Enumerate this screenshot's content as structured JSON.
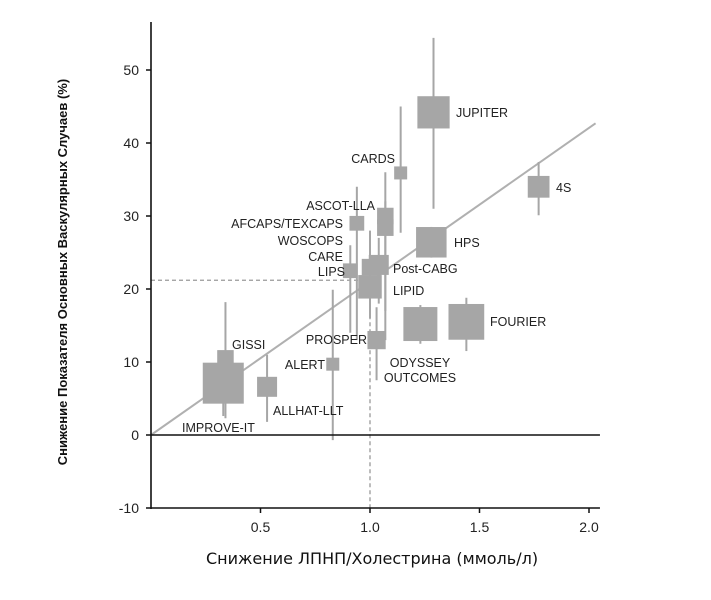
{
  "chart_data": {
    "type": "scatter",
    "xlabel": "Снижение ЛПНП/Холестрина (ммоль/л)",
    "ylabel": "Снижение Показателя Основных Васкулярных Случаев (%)",
    "xlim": [
      0,
      2.05
    ],
    "ylim": [
      -10,
      56
    ],
    "x_ticks": [
      "0.5",
      "1.0",
      "1.5",
      "2.0"
    ],
    "y_ticks": [
      "-10",
      "0",
      "10",
      "20",
      "30",
      "40",
      "50"
    ],
    "grid": false,
    "colors": {
      "marker": "#a6a6a6",
      "axis": "#111111",
      "regression": "#b0b0b0"
    },
    "regression_line": {
      "from": [
        0,
        0
      ],
      "to": [
        2.03,
        42.7
      ]
    },
    "reference_lines": {
      "x": 1.0,
      "y": 21.2,
      "style": "dashed"
    },
    "points": [
      {
        "label": "IMPROVE-IT",
        "x": 0.33,
        "y": 7.1,
        "ci": [
          2.6,
          9.5
        ],
        "weight": 10
      },
      {
        "label": "GISSI",
        "x": 0.34,
        "y": 10.5,
        "ci": [
          2.3,
          18.2
        ],
        "weight": 3
      },
      {
        "label": "ALLHAT-LLT",
        "x": 0.53,
        "y": 6.6,
        "ci": [
          1.8,
          11.0
        ],
        "weight": 4
      },
      {
        "label": "ALERT",
        "x": 0.83,
        "y": 9.7,
        "ci": [
          -0.7,
          19.9
        ],
        "weight": 2
      },
      {
        "label": "PROSPER",
        "x": 1.03,
        "y": 13.0,
        "ci": [
          7.5,
          17.5
        ],
        "weight": 3.5
      },
      {
        "label": "LIPS",
        "x": 0.91,
        "y": 22.5,
        "ci": [
          14.0,
          26.0
        ],
        "weight": 2.5
      },
      {
        "label": "CARE",
        "x": 1.0,
        "y": 23.0,
        "ci": [
          16.0,
          28.0
        ],
        "weight": 3
      },
      {
        "label": "WOSCOPS",
        "x": 1.07,
        "y": 28.4,
        "ci": [
          17.0,
          32.0
        ],
        "weight": 3
      },
      {
        "label": "AFCAPS/TEXCAPS",
        "x": 0.94,
        "y": 29.0,
        "ci": [
          13.0,
          34.0
        ],
        "weight": 2.5
      },
      {
        "label": "ASCOT-LLA",
        "x": 1.07,
        "y": 30.0,
        "ci": [
          13.0,
          36.0
        ],
        "weight": 3
      },
      {
        "label": "CARDS",
        "x": 1.14,
        "y": 35.9,
        "ci": [
          27.7,
          45.0
        ],
        "weight": 2
      },
      {
        "label": "JUPITER",
        "x": 1.29,
        "y": 44.2,
        "ci": [
          31.0,
          54.4
        ],
        "weight": 7.5
      },
      {
        "label": "HPS",
        "x": 1.28,
        "y": 26.4,
        "ci": [
          24.3,
          28.5
        ],
        "weight": 7
      },
      {
        "label": "4S",
        "x": 1.77,
        "y": 34.0,
        "ci": [
          30.1,
          37.4
        ],
        "weight": 4.5
      },
      {
        "label": "Post-CABG",
        "x": 1.04,
        "y": 23.3,
        "ci": [
          18.0,
          27.0
        ],
        "weight": 4
      },
      {
        "label": "LIPID",
        "x": 1.0,
        "y": 20.3,
        "ci": [
          17.5,
          22.5
        ],
        "weight": 5
      },
      {
        "label": "ODYSSEY OUTCOMES",
        "label_lines": [
          "ODYSSEY",
          "OUTCOMES"
        ],
        "x": 1.23,
        "y": 15.2,
        "ci": [
          12.5,
          17.8
        ],
        "weight": 8
      },
      {
        "label": "FOURIER",
        "x": 1.44,
        "y": 15.5,
        "ci": [
          11.5,
          18.8
        ],
        "weight": 8.5
      }
    ]
  }
}
